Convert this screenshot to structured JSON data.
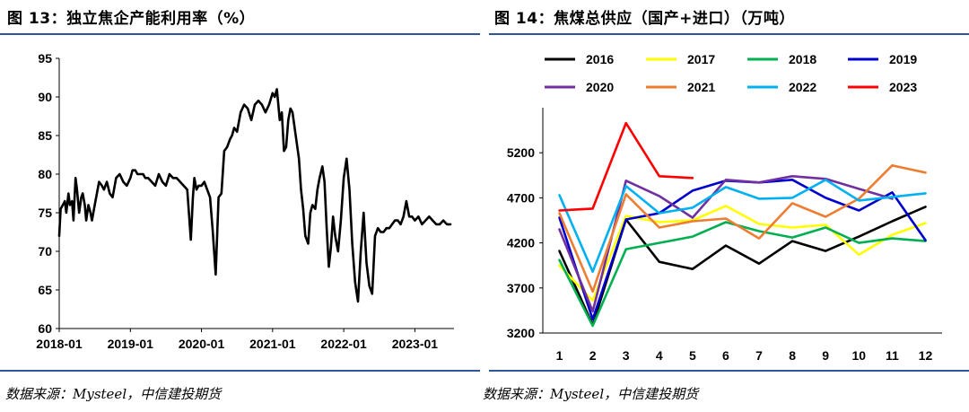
{
  "left": {
    "title": "图 13：独立焦企产能利用率（%）",
    "source": "数据来源：Mysteel，中信建投期货"
  },
  "right": {
    "title": "图 14：焦煤总供应（国产+进口）（万吨）",
    "source": "数据来源：Mysteel，中信建投期货"
  },
  "chart_data": [
    {
      "type": "line",
      "title": "图 13：独立焦企产能利用率（%）",
      "xlabel": "",
      "ylabel": "",
      "ylim": [
        60,
        95
      ],
      "yticks": [
        "60",
        "65",
        "70",
        "75",
        "80",
        "85",
        "90",
        "95"
      ],
      "xticks": [
        "2018-01",
        "2019-01",
        "2020-01",
        "2021-01",
        "2022-01",
        "2023-01"
      ],
      "xlim": [
        2018.0,
        2023.55
      ],
      "grid": false,
      "series": [
        {
          "color": "#000000",
          "x": [
            2018.0,
            2018.02,
            2018.05,
            2018.08,
            2018.1,
            2018.13,
            2018.15,
            2018.18,
            2018.2,
            2018.23,
            2018.25,
            2018.28,
            2018.31,
            2018.33,
            2018.36,
            2018.38,
            2018.41,
            2018.44,
            2018.46,
            2018.5,
            2018.53,
            2018.56,
            2018.6,
            2018.63,
            2018.67,
            2018.71,
            2018.75,
            2018.8,
            2018.85,
            2018.9,
            2018.95,
            2019.0,
            2019.03,
            2019.07,
            2019.1,
            2019.14,
            2019.18,
            2019.21,
            2019.25,
            2019.3,
            2019.35,
            2019.4,
            2019.45,
            2019.5,
            2019.55,
            2019.6,
            2019.65,
            2019.7,
            2019.75,
            2019.8,
            2019.85,
            2019.88,
            2019.9,
            2019.93,
            2019.96,
            2020.0,
            2020.04,
            2020.08,
            2020.12,
            2020.16,
            2020.2,
            2020.24,
            2020.28,
            2020.32,
            2020.36,
            2020.4,
            2020.43,
            2020.46,
            2020.5,
            2020.55,
            2020.6,
            2020.65,
            2020.7,
            2020.75,
            2020.8,
            2020.85,
            2020.9,
            2020.95,
            2021.0,
            2021.03,
            2021.06,
            2021.1,
            2021.13,
            2021.16,
            2021.19,
            2021.22,
            2021.25,
            2021.28,
            2021.31,
            2021.34,
            2021.37,
            2021.4,
            2021.43,
            2021.46,
            2021.5,
            2021.53,
            2021.56,
            2021.6,
            2021.63,
            2021.66,
            2021.7,
            2021.73,
            2021.76,
            2021.79,
            2021.82,
            2021.85,
            2021.88,
            2021.92,
            2021.96,
            2022.0,
            2022.04,
            2022.08,
            2022.12,
            2022.16,
            2022.2,
            2022.24,
            2022.28,
            2022.32,
            2022.36,
            2022.4,
            2022.44,
            2022.48,
            2022.52,
            2022.56,
            2022.6,
            2022.64,
            2022.68,
            2022.72,
            2022.76,
            2022.8,
            2022.84,
            2022.88,
            2022.92,
            2022.96,
            2023.0,
            2023.05,
            2023.1,
            2023.15,
            2023.2,
            2023.25,
            2023.3,
            2023.35,
            2023.4,
            2023.45,
            2023.5
          ],
          "y": [
            72,
            75.5,
            76,
            76.5,
            75,
            77.5,
            76,
            76.5,
            74,
            79.5,
            78,
            75,
            77,
            77.5,
            76,
            74,
            76,
            75,
            74,
            76,
            77.5,
            79,
            78.5,
            78,
            79,
            77.5,
            77,
            79.5,
            80,
            79,
            78.5,
            79.5,
            80.5,
            80.5,
            80,
            80,
            80,
            79.5,
            79.5,
            79,
            78.5,
            80,
            79,
            78.5,
            80,
            79.5,
            79.5,
            79,
            78.5,
            78,
            71.5,
            77,
            79.5,
            78,
            78.5,
            78.5,
            79,
            78,
            77,
            72.5,
            67,
            77,
            77.5,
            83,
            83.5,
            84.5,
            85,
            86,
            85.5,
            88,
            89,
            88.5,
            87,
            89,
            89.5,
            89,
            88,
            89,
            90.5,
            90,
            91,
            87,
            88,
            83,
            83.5,
            87,
            88.5,
            88,
            86,
            84,
            82,
            78,
            75.5,
            72,
            71,
            75,
            76,
            75.5,
            78,
            79.5,
            81,
            79,
            73,
            68,
            70.5,
            74.5,
            72,
            70,
            74,
            79.5,
            82,
            78,
            71,
            66,
            63.5,
            70,
            75,
            68.5,
            65.5,
            64.5,
            72,
            73,
            72.5,
            72.5,
            73,
            73,
            73.5,
            74,
            74,
            73.5,
            74.5,
            76.5,
            74.5,
            74.5,
            74,
            74.5,
            73.5,
            74,
            74.5,
            74,
            73.5,
            73.5,
            74,
            73.5,
            73.5
          ]
        }
      ]
    },
    {
      "type": "line",
      "title": "图 14：焦煤总供应（国产+进口）（万吨）",
      "xlabel": "",
      "ylabel": "",
      "categories": [
        "1",
        "2",
        "3",
        "4",
        "5",
        "6",
        "7",
        "8",
        "9",
        "10",
        "11",
        "12"
      ],
      "ylim": [
        3200,
        5700
      ],
      "yticks": [
        "3200",
        "3700",
        "4200",
        "4700",
        "5200"
      ],
      "grid": false,
      "legend": "top",
      "series": [
        {
          "name": "2016",
          "color": "#000000",
          "values": [
            4110,
            3290,
            4460,
            3990,
            3910,
            4170,
            3970,
            4220,
            4110,
            4270,
            4440,
            4600
          ]
        },
        {
          "name": "2017",
          "color": "#ffff00",
          "values": [
            3950,
            3560,
            4500,
            4430,
            4450,
            4610,
            4410,
            4370,
            4400,
            4070,
            4290,
            4420
          ]
        },
        {
          "name": "2018",
          "color": "#00b050",
          "values": [
            4010,
            3280,
            4130,
            4200,
            4270,
            4430,
            4330,
            4260,
            4370,
            4200,
            4250,
            4220
          ]
        },
        {
          "name": "2019",
          "color": "#0000cc",
          "values": [
            4480,
            3350,
            4460,
            4530,
            4780,
            4890,
            4870,
            4900,
            4700,
            4560,
            4760,
            4230
          ]
        },
        {
          "name": "2020",
          "color": "#7030a0",
          "values": [
            4350,
            3440,
            4890,
            4720,
            4480,
            4900,
            4870,
            4940,
            4910,
            4800,
            4690,
            null
          ]
        },
        {
          "name": "2021",
          "color": "#ed7d31",
          "values": [
            4530,
            3660,
            4740,
            4370,
            4440,
            4470,
            4250,
            4640,
            4490,
            4690,
            5060,
            4980
          ]
        },
        {
          "name": "2022",
          "color": "#00b0f0",
          "values": [
            4730,
            3880,
            4830,
            4530,
            4590,
            4820,
            4690,
            4700,
            4900,
            4670,
            4710,
            4750
          ]
        },
        {
          "name": "2023",
          "color": "#ff0000",
          "values": [
            4560,
            4580,
            5530,
            4940,
            4920,
            null,
            null,
            null,
            null,
            null,
            null,
            null
          ]
        }
      ]
    }
  ]
}
